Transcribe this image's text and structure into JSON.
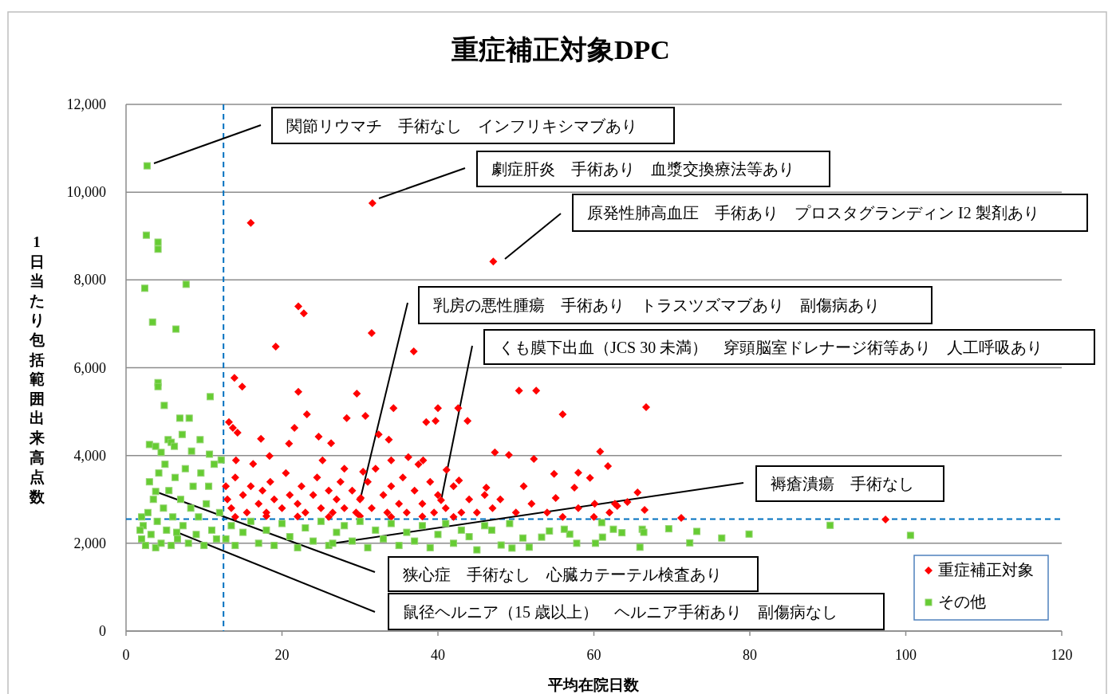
{
  "chart_data": {
    "type": "scatter",
    "title": "重症補正対象DPC",
    "xlabel": "平均在院日数",
    "ylabel": "1日当たり包括範囲出来高点数",
    "xlim": [
      0,
      120
    ],
    "xticks": [
      0,
      20,
      40,
      60,
      80,
      100,
      120
    ],
    "ylim": [
      0,
      12000
    ],
    "yticks": [
      {
        "value": 0,
        "label": "0"
      },
      {
        "value": 2000,
        "label": "2,000"
      },
      {
        "value": 4000,
        "label": "4,000"
      },
      {
        "value": 6000,
        "label": "6,000"
      },
      {
        "value": 8000,
        "label": "8,000"
      },
      {
        "value": 10000,
        "label": "10,000"
      },
      {
        "value": 12000,
        "label": "12,000"
      }
    ],
    "grid": "y",
    "legend": "bottom right",
    "ref_lines": [
      {
        "axis": "x",
        "value": 12.5,
        "color": "#0070c0",
        "line_style": "dashed"
      },
      {
        "axis": "y",
        "value": 2550,
        "color": "#0070c0",
        "line_style": "dashed"
      }
    ],
    "annotations": [
      "関節リウマチ　手術なし　インフリキシマブあり",
      "劇症肝炎　手術あり　血漿交換療法等あり",
      "原発性肺高血圧　手術あり　プロスタグランディン I2 製剤あり",
      "乳房の悪性腫瘍　手術あり　トラスツズマブあり　副傷病あり",
      "くも膜下出血（JCS 30 未満）　穿頭脳室ドレナージ術等あり　人工呼吸あり",
      "褥瘡潰瘍　手術なし",
      "狭心症　手術なし　心臓カテーテル検査あり",
      "鼠径ヘルニア（15 歳以上）　ヘルニア手術あり　副傷病なし"
    ],
    "series": [
      {
        "name": "重症補正対象",
        "color": "#ff0000",
        "marker": "diamond",
        "x": [
          31.6,
          16.0,
          47.1,
          22.1,
          22.8,
          31.5,
          19.2,
          36.9,
          13.9,
          14.9,
          22.1,
          29.6,
          50.4,
          52.6,
          66.7,
          34.3,
          40.0,
          42.6,
          56.0,
          23.2,
          30.7,
          38.5,
          39.7,
          43.8,
          28.3,
          13.2,
          13.7,
          14.3,
          21.6,
          24.7,
          26.3,
          17.3,
          20.9,
          32.4,
          33.7,
          47.3,
          49.1,
          60.8,
          52.3,
          61.8,
          59.5,
          54.9,
          58.0,
          65.6,
          64.3,
          71.2,
          97.4,
          66.5,
          18.4,
          14.1,
          16.3,
          25.2,
          28.0,
          30.4,
          34.0,
          36.2,
          38.1,
          41.1,
          42.7,
          46.2,
          51.0,
          55.1,
          60.1,
          62.7,
          57.5,
          12.8,
          13,
          13.5,
          14,
          15,
          15.5,
          16,
          17,
          17.5,
          18,
          18.5,
          19,
          20,
          20.5,
          21,
          22,
          22.5,
          23,
          24,
          24.5,
          25,
          26,
          26.5,
          27,
          27.5,
          28,
          29,
          29.5,
          30,
          31,
          31.5,
          32,
          33,
          33.5,
          34,
          35,
          35.5,
          36,
          37,
          37.5,
          38,
          39,
          39.5,
          40,
          41,
          42,
          43,
          44,
          45,
          46,
          47,
          48,
          50,
          52,
          54,
          56,
          58,
          60,
          62,
          63,
          14,
          18,
          22,
          26,
          30,
          34,
          38,
          42,
          30.1,
          40.4
        ],
        "values": [
          9750,
          9300,
          8420,
          7400,
          7240,
          6790,
          6480,
          6370,
          5770,
          5570,
          5450,
          5410,
          5480,
          5480,
          5100,
          5080,
          5080,
          5080,
          4940,
          4940,
          4900,
          4760,
          4790,
          4790,
          4850,
          4760,
          4630,
          4520,
          4630,
          4430,
          4280,
          4380,
          4270,
          4480,
          4360,
          4070,
          4010,
          4090,
          3920,
          3760,
          3490,
          3580,
          3610,
          3160,
          2940,
          2580,
          2540,
          2760,
          3990,
          3890,
          3810,
          3890,
          3700,
          3630,
          3890,
          3960,
          3890,
          3670,
          3430,
          3270,
          3300,
          3030,
          2900,
          2900,
          3270,
          3300,
          3000,
          2800,
          3500,
          3100,
          2700,
          3300,
          2900,
          3200,
          2700,
          3400,
          3000,
          2800,
          3600,
          3100,
          2900,
          3300,
          2700,
          3100,
          3500,
          2800,
          3200,
          2700,
          3000,
          3400,
          2800,
          3200,
          2700,
          3000,
          3400,
          2800,
          3700,
          3100,
          2700,
          3300,
          2900,
          3500,
          2700,
          3200,
          3800,
          2900,
          3400,
          2700,
          3100,
          2800,
          3300,
          2700,
          3000,
          2700,
          3100,
          2800,
          3000,
          2700,
          2900,
          2700,
          2600,
          2800,
          2600,
          2700,
          2850,
          2600,
          2620,
          2610,
          2600,
          2620,
          2600,
          2610,
          2600,
          3030,
          2980
        ]
      },
      {
        "name": "その他",
        "color": "#66cc33",
        "marker": "square",
        "x": [
          2.7,
          2.6,
          4.1,
          4.1,
          2.4,
          7.7,
          3.4,
          6.4,
          4.1,
          4.1,
          4.9,
          10.8,
          6.9,
          8.1,
          7.2,
          3.0,
          9.5,
          5.4,
          5.8,
          6.2,
          8.4,
          3.8,
          4.5,
          10.7,
          69.6,
          73.2,
          72.3,
          76.4,
          79.9,
          90.3,
          100.6,
          65.9,
          66.2,
          66.4,
          63.6,
          62.5,
          61.1,
          60.2,
          61.0,
          57.8,
          56.9,
          56.2,
          54.3,
          53.3,
          51.7,
          50.9,
          49.5,
          48.1,
          46.9,
          49.2,
          2,
          2.2,
          2.5,
          2.8,
          3,
          3.2,
          3.5,
          3.8,
          4,
          4.2,
          4.5,
          4.8,
          5,
          5.2,
          5.5,
          5.8,
          6,
          6.3,
          6.6,
          7,
          7.3,
          7.6,
          8,
          8.3,
          8.6,
          9,
          9.3,
          9.6,
          10,
          10.3,
          10.6,
          11,
          11.3,
          11.6,
          12,
          12.2,
          1.8,
          2,
          12.8,
          13.5,
          14,
          15,
          16,
          17,
          18,
          19,
          20,
          21,
          22,
          23,
          24,
          25,
          26,
          27,
          28,
          29,
          30,
          31,
          32,
          33,
          34,
          35,
          36,
          37,
          38,
          39,
          40,
          41,
          42,
          43,
          44,
          45,
          46,
          26.5,
          3.8,
          6.5
        ],
        "values": [
          10600,
          9020,
          8860,
          8700,
          7810,
          7900,
          7040,
          6880,
          5660,
          5570,
          5140,
          5340,
          4850,
          4850,
          4480,
          4250,
          4360,
          4360,
          4300,
          4210,
          4100,
          4210,
          4070,
          4030,
          2330,
          2270,
          2010,
          2120,
          2210,
          2410,
          2180,
          1910,
          2320,
          2250,
          2240,
          2320,
          2140,
          2000,
          2470,
          2000,
          2210,
          2320,
          2280,
          2140,
          1910,
          2120,
          1890,
          1960,
          2300,
          2450,
          2100,
          2400,
          1950,
          2700,
          3400,
          2200,
          3000,
          1900,
          2500,
          3600,
          2000,
          2800,
          3800,
          2300,
          3200,
          1950,
          2600,
          3500,
          2100,
          3000,
          2400,
          3700,
          2000,
          2800,
          3300,
          2200,
          2600,
          3600,
          1950,
          2900,
          3300,
          2300,
          3800,
          2100,
          2700,
          3900,
          2300,
          2600,
          2100,
          2400,
          1950,
          2250,
          2500,
          2000,
          2300,
          1950,
          2450,
          2150,
          1900,
          2350,
          2050,
          2500,
          1950,
          2250,
          2400,
          2050,
          2500,
          1900,
          2300,
          2100,
          2450,
          1950,
          2250,
          2050,
          2400,
          1900,
          2200,
          2450,
          2000,
          2300,
          2150,
          1850,
          2400,
          2000,
          3180,
          2250
        ]
      }
    ]
  }
}
